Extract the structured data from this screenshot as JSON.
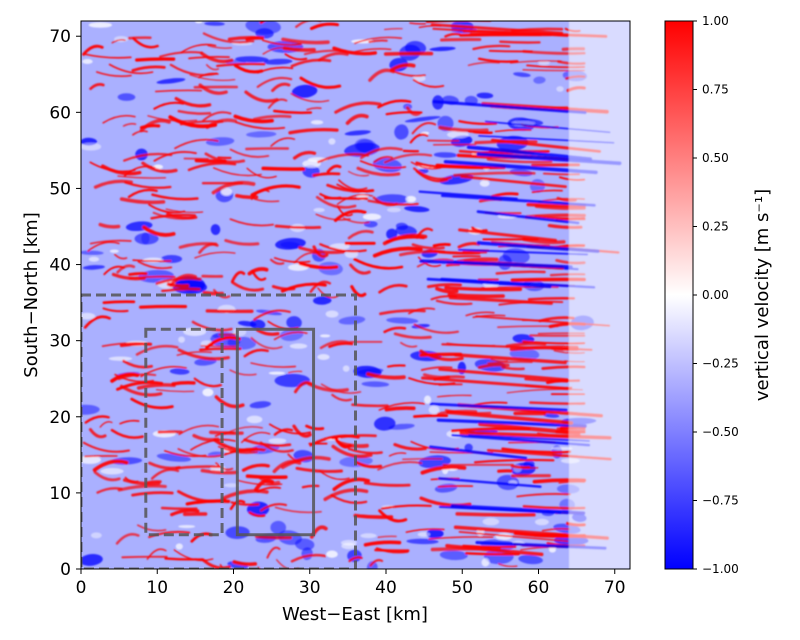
{
  "chart_data": {
    "type": "heatmap",
    "title": "",
    "xlabel": "West−East [km]",
    "ylabel": "South−North [km]",
    "xlim": [
      0,
      72
    ],
    "ylim": [
      0,
      72
    ],
    "x_ticks": [
      0,
      10,
      20,
      30,
      40,
      50,
      60,
      70
    ],
    "y_ticks": [
      0,
      10,
      20,
      30,
      40,
      50,
      60,
      70
    ],
    "colorbar": {
      "label": "vertical velocity [m s⁻¹]",
      "range": [
        -1.0,
        1.0
      ],
      "ticks": [
        "1.00",
        "0.75",
        "0.50",
        "0.25",
        "0.00",
        "−0.25",
        "−0.50",
        "−0.75",
        "−1.00"
      ],
      "tick_values": [
        1.0,
        0.75,
        0.5,
        0.25,
        0.0,
        -0.25,
        -0.5,
        -0.75,
        -1.0
      ],
      "colormap": "bwr",
      "colors": {
        "low": "#0000ff",
        "mid": "#ffffff",
        "high": "#ff0000"
      }
    },
    "field": {
      "description_values": "banded updraft/downdraft streaks oriented roughly west-east, fading to near-zero at the eastern boundary",
      "value_range": [
        -1.0,
        1.0
      ]
    },
    "annotations": [
      {
        "name": "outer-box",
        "style": "dashed",
        "x_range": [
          0,
          36
        ],
        "y_range": [
          0,
          36
        ]
      },
      {
        "name": "inner-box-left",
        "style": "dashed",
        "x_range": [
          8.5,
          18.5
        ],
        "y_range": [
          4.5,
          31.5
        ]
      },
      {
        "name": "inner-box-right",
        "style": "solid",
        "x_range": [
          20.5,
          30.5
        ],
        "y_range": [
          4.5,
          31.5
        ]
      }
    ]
  }
}
